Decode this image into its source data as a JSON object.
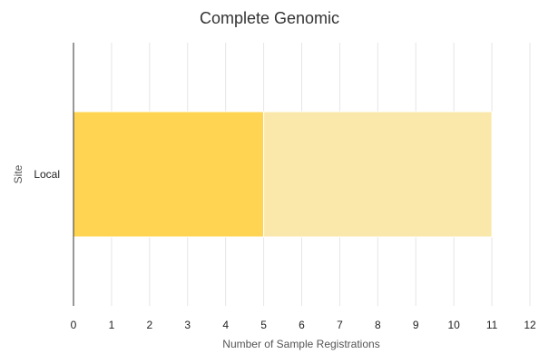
{
  "chart_data": {
    "type": "bar",
    "orientation": "horizontal",
    "stacked": true,
    "title": "Complete Genomic",
    "xlabel": "Number of Sample Registrations",
    "ylabel": "Site",
    "categories": [
      "Local"
    ],
    "series": [
      {
        "values": [
          5
        ],
        "color": "#ffd452"
      },
      {
        "values": [
          6
        ],
        "color": "#fae8ab"
      }
    ],
    "xlim": [
      0,
      12
    ],
    "xticks": [
      "0",
      "1",
      "2",
      "3",
      "4",
      "5",
      "6",
      "7",
      "8",
      "9",
      "10",
      "11",
      "12"
    ],
    "grid": true,
    "legend": "none"
  }
}
